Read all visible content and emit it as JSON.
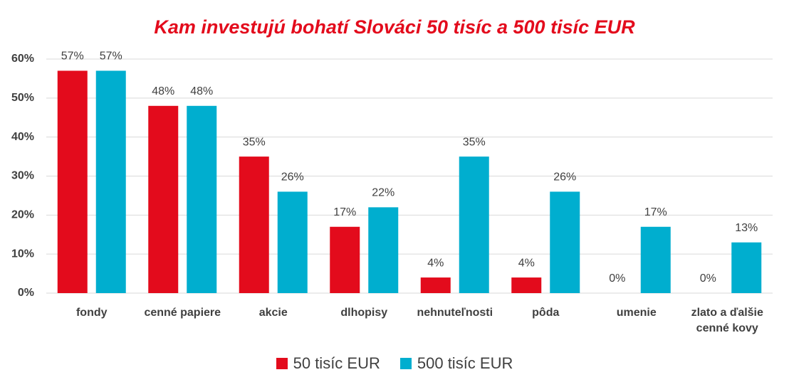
{
  "chart_data": {
    "type": "bar",
    "title": "Kam investujú bohatí Slováci 50 tisíc a 500 tisíc EUR",
    "categories": [
      "fondy",
      "cenné papiere",
      "akcie",
      "dlhopisy",
      "nehnuteľnosti",
      "pôda",
      "umenie",
      "zlato a ďalšie cenné kovy"
    ],
    "series": [
      {
        "name": "50 tisíc EUR",
        "color": "#e30b1c",
        "values": [
          57,
          48,
          35,
          17,
          4,
          4,
          0,
          0
        ],
        "value_labels": [
          "57%",
          "48%",
          "35%",
          "17%",
          "4%",
          "4%",
          "0%",
          "0%"
        ]
      },
      {
        "name": "500 tisíc EUR",
        "color": "#00aecf",
        "values": [
          57,
          48,
          26,
          22,
          35,
          26,
          17,
          13
        ],
        "value_labels": [
          "57%",
          "48%",
          "26%",
          "22%",
          "35%",
          "26%",
          "17%",
          "13%"
        ]
      }
    ],
    "ylim": [
      0,
      60
    ],
    "yticks": [
      {
        "value": 0,
        "label": "0%"
      },
      {
        "value": 10,
        "label": "10%"
      },
      {
        "value": 20,
        "label": "20%"
      },
      {
        "value": 30,
        "label": "30%"
      },
      {
        "value": 40,
        "label": "40%"
      },
      {
        "value": 50,
        "label": "50%"
      },
      {
        "value": 60,
        "label": "60%"
      }
    ],
    "grid": true,
    "legend": "bottom"
  }
}
